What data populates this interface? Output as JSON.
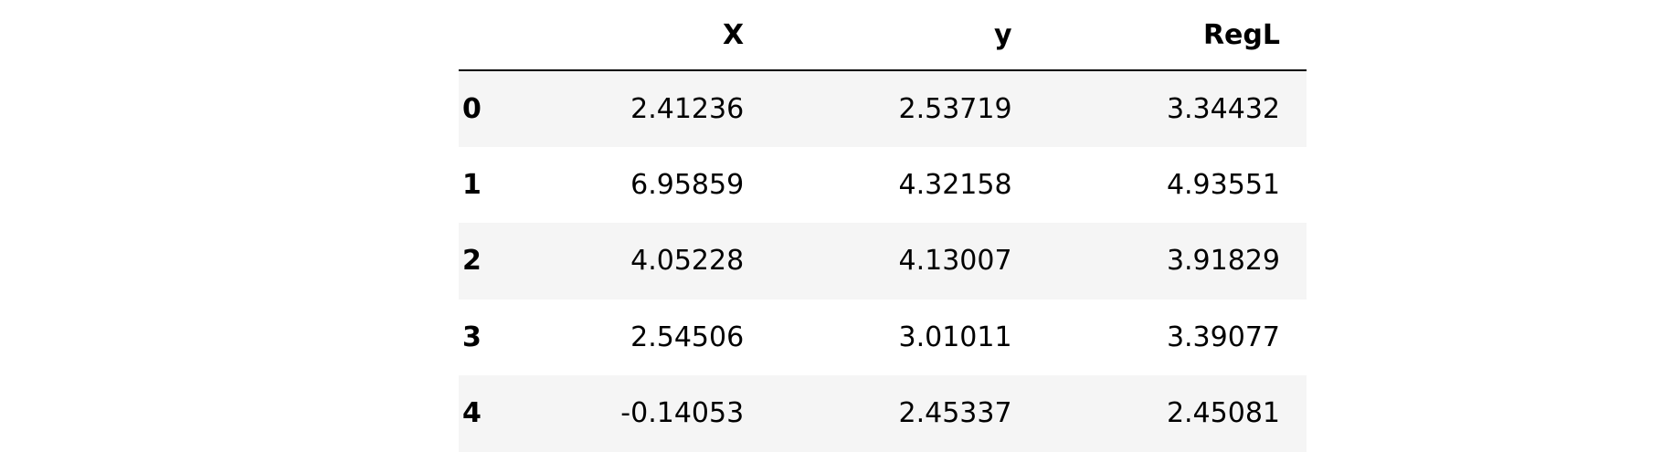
{
  "table": {
    "index_header": "",
    "columns": [
      "X",
      "y",
      "RegL"
    ],
    "rows": [
      {
        "index": "0",
        "values": [
          "2.41236",
          "2.53719",
          "3.34432"
        ]
      },
      {
        "index": "1",
        "values": [
          "6.95859",
          "4.32158",
          "4.93551"
        ]
      },
      {
        "index": "2",
        "values": [
          "4.05228",
          "4.13007",
          "3.91829"
        ]
      },
      {
        "index": "3",
        "values": [
          "2.54506",
          "3.01011",
          "3.39077"
        ]
      },
      {
        "index": "4",
        "values": [
          "-0.14053",
          "2.45337",
          "2.45081"
        ]
      }
    ]
  },
  "colors": {
    "stripe": "#f5f5f5",
    "text": "#000000",
    "rule": "#000000"
  }
}
